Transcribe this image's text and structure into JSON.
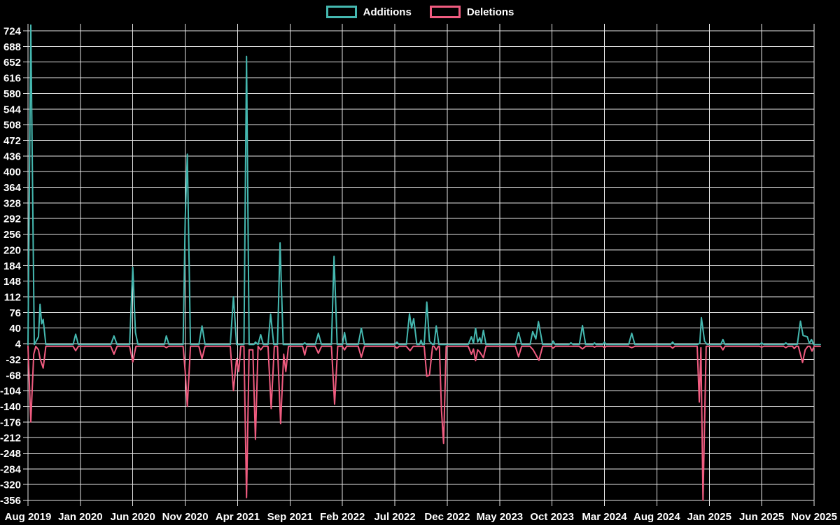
{
  "legend": {
    "additions_label": "Additions",
    "deletions_label": "Deletions"
  },
  "colors": {
    "background": "#000000",
    "grid": "#e6e6e6",
    "text": "#ffffff",
    "additions": "#45b8b0",
    "deletions": "#f05c80"
  },
  "chart_data": {
    "type": "line",
    "title": "",
    "xlabel": "",
    "ylabel": "",
    "grid": true,
    "legend_position": "top-center",
    "x_unit": "months since Aug 2019 (5 months between ticks)",
    "x_tick_labels": [
      "Aug 2019",
      "Jan 2020",
      "Jun 2020",
      "Nov 2020",
      "Apr 2021",
      "Sep 2021",
      "Feb 2022",
      "Jul 2022",
      "Dec 2022",
      "May 2023",
      "Oct 2023",
      "Mar 2024",
      "Aug 2024",
      "Jan 2025",
      "Jun 2025",
      "Nov 2025"
    ],
    "x_months_per_tick": 5,
    "x_months_total": 75.6,
    "y_ticks": [
      724,
      688,
      652,
      616,
      580,
      544,
      508,
      472,
      436,
      400,
      364,
      328,
      292,
      256,
      220,
      184,
      148,
      112,
      76,
      40,
      4,
      -32,
      -68,
      -104,
      -140,
      -176,
      -212,
      -248,
      -284,
      -320,
      -356
    ],
    "y_max": 724,
    "y_min": -356,
    "y_step": 36,
    "series": [
      {
        "name": "Additions",
        "color_key": "additions",
        "points": [
          [
            0,
            2
          ],
          [
            0.27,
            737
          ],
          [
            0.6,
            2
          ],
          [
            1.0,
            20
          ],
          [
            1.15,
            95
          ],
          [
            1.3,
            50
          ],
          [
            1.45,
            60
          ],
          [
            1.7,
            2
          ],
          [
            4.3,
            2
          ],
          [
            4.55,
            26
          ],
          [
            4.8,
            2
          ],
          [
            7.9,
            2
          ],
          [
            8.2,
            22
          ],
          [
            8.5,
            2
          ],
          [
            9.7,
            2
          ],
          [
            10.0,
            180
          ],
          [
            10.25,
            30
          ],
          [
            10.5,
            2
          ],
          [
            13.0,
            2
          ],
          [
            13.2,
            22
          ],
          [
            13.45,
            2
          ],
          [
            14.8,
            2
          ],
          [
            15.0,
            290
          ],
          [
            15.2,
            440
          ],
          [
            15.5,
            2
          ],
          [
            16.3,
            2
          ],
          [
            16.6,
            45
          ],
          [
            16.9,
            2
          ],
          [
            19.3,
            2
          ],
          [
            19.6,
            112
          ],
          [
            19.9,
            2
          ],
          [
            20.6,
            2
          ],
          [
            20.85,
            665
          ],
          [
            21.1,
            2
          ],
          [
            21.55,
            2
          ],
          [
            21.7,
            8
          ],
          [
            21.95,
            2
          ],
          [
            22.2,
            25
          ],
          [
            22.45,
            2
          ],
          [
            22.9,
            2
          ],
          [
            23.15,
            72
          ],
          [
            23.45,
            2
          ],
          [
            23.8,
            2
          ],
          [
            24.05,
            236
          ],
          [
            24.35,
            2
          ],
          [
            26.2,
            2
          ],
          [
            26.4,
            6
          ],
          [
            26.6,
            2
          ],
          [
            27.4,
            2
          ],
          [
            27.7,
            28
          ],
          [
            28.0,
            2
          ],
          [
            28.95,
            2
          ],
          [
            29.2,
            205
          ],
          [
            29.5,
            2
          ],
          [
            30.0,
            2
          ],
          [
            30.2,
            30
          ],
          [
            30.4,
            2
          ],
          [
            31.5,
            2
          ],
          [
            31.8,
            40
          ],
          [
            32.1,
            2
          ],
          [
            35.0,
            2
          ],
          [
            35.2,
            8
          ],
          [
            35.4,
            2
          ],
          [
            36.1,
            2
          ],
          [
            36.4,
            73
          ],
          [
            36.6,
            40
          ],
          [
            36.8,
            62
          ],
          [
            37.1,
            2
          ],
          [
            37.35,
            2
          ],
          [
            37.5,
            12
          ],
          [
            37.65,
            2
          ],
          [
            37.8,
            2
          ],
          [
            38.05,
            100
          ],
          [
            38.3,
            10
          ],
          [
            38.6,
            2
          ],
          [
            38.75,
            2
          ],
          [
            38.95,
            45
          ],
          [
            39.2,
            2
          ],
          [
            42.0,
            2
          ],
          [
            42.3,
            20
          ],
          [
            42.5,
            5
          ],
          [
            42.7,
            40
          ],
          [
            42.9,
            8
          ],
          [
            43.1,
            18
          ],
          [
            43.25,
            5
          ],
          [
            43.45,
            35
          ],
          [
            43.7,
            2
          ],
          [
            46.5,
            2
          ],
          [
            46.8,
            30
          ],
          [
            47.1,
            2
          ],
          [
            47.9,
            2
          ],
          [
            48.15,
            32
          ],
          [
            48.45,
            15
          ],
          [
            48.7,
            55
          ],
          [
            49.1,
            2
          ],
          [
            49.9,
            2
          ],
          [
            50.1,
            10
          ],
          [
            50.3,
            2
          ],
          [
            51.6,
            2
          ],
          [
            51.8,
            6
          ],
          [
            52.0,
            2
          ],
          [
            52.6,
            2
          ],
          [
            52.9,
            46
          ],
          [
            53.2,
            2
          ],
          [
            53.9,
            2
          ],
          [
            54.05,
            6
          ],
          [
            54.2,
            2
          ],
          [
            54.85,
            2
          ],
          [
            55.0,
            8
          ],
          [
            55.15,
            2
          ],
          [
            57.3,
            2
          ],
          [
            57.6,
            28
          ],
          [
            57.9,
            2
          ],
          [
            61.3,
            2
          ],
          [
            61.5,
            8
          ],
          [
            61.7,
            2
          ],
          [
            63.9,
            2
          ],
          [
            64.1,
            6
          ],
          [
            64.25,
            64
          ],
          [
            64.55,
            10
          ],
          [
            64.8,
            2
          ],
          [
            66.1,
            2
          ],
          [
            66.3,
            14
          ],
          [
            66.5,
            2
          ],
          [
            69.8,
            2
          ],
          [
            70.0,
            6
          ],
          [
            70.2,
            2
          ],
          [
            72.1,
            2
          ],
          [
            72.3,
            6
          ],
          [
            72.5,
            2
          ],
          [
            73.4,
            2
          ],
          [
            73.7,
            56
          ],
          [
            73.95,
            23
          ],
          [
            74.35,
            20
          ],
          [
            74.55,
            5
          ],
          [
            74.75,
            14
          ],
          [
            74.95,
            2
          ],
          [
            75.6,
            2
          ]
        ]
      },
      {
        "name": "Deletions",
        "color_key": "deletions",
        "points": [
          [
            0,
            -2
          ],
          [
            0.27,
            -176
          ],
          [
            0.55,
            -20
          ],
          [
            0.75,
            -2
          ],
          [
            1.0,
            -10
          ],
          [
            1.15,
            -30
          ],
          [
            1.45,
            -52
          ],
          [
            1.7,
            -2
          ],
          [
            4.3,
            -2
          ],
          [
            4.55,
            -12
          ],
          [
            4.8,
            -2
          ],
          [
            7.9,
            -2
          ],
          [
            8.2,
            -20
          ],
          [
            8.5,
            -2
          ],
          [
            9.7,
            -2
          ],
          [
            10.0,
            -38
          ],
          [
            10.3,
            -2
          ],
          [
            13.0,
            -2
          ],
          [
            13.2,
            -5
          ],
          [
            13.4,
            -2
          ],
          [
            14.8,
            -2
          ],
          [
            15.0,
            -60
          ],
          [
            15.2,
            -140
          ],
          [
            15.5,
            -2
          ],
          [
            16.3,
            -2
          ],
          [
            16.6,
            -30
          ],
          [
            16.9,
            -2
          ],
          [
            19.3,
            -2
          ],
          [
            19.6,
            -104
          ],
          [
            19.9,
            -30
          ],
          [
            20.1,
            -60
          ],
          [
            20.3,
            -2
          ],
          [
            20.6,
            -2
          ],
          [
            20.85,
            -350
          ],
          [
            21.1,
            -10
          ],
          [
            21.45,
            -10
          ],
          [
            21.7,
            -216
          ],
          [
            21.95,
            -2
          ],
          [
            22.2,
            -10
          ],
          [
            22.45,
            -2
          ],
          [
            22.9,
            -2
          ],
          [
            23.2,
            -145
          ],
          [
            23.5,
            -2
          ],
          [
            23.8,
            -2
          ],
          [
            24.1,
            -180
          ],
          [
            24.4,
            -20
          ],
          [
            24.6,
            -60
          ],
          [
            24.85,
            -2
          ],
          [
            26.2,
            -2
          ],
          [
            26.4,
            -22
          ],
          [
            26.6,
            -2
          ],
          [
            27.4,
            -2
          ],
          [
            27.7,
            -18
          ],
          [
            28.0,
            -2
          ],
          [
            28.95,
            -2
          ],
          [
            29.25,
            -135
          ],
          [
            29.55,
            -2
          ],
          [
            30.0,
            -2
          ],
          [
            30.2,
            -10
          ],
          [
            30.4,
            -2
          ],
          [
            31.5,
            -2
          ],
          [
            31.8,
            -27
          ],
          [
            32.1,
            -2
          ],
          [
            35.0,
            -2
          ],
          [
            35.2,
            -6
          ],
          [
            35.4,
            -2
          ],
          [
            36.1,
            -2
          ],
          [
            36.45,
            -12
          ],
          [
            36.75,
            -2
          ],
          [
            37.8,
            -2
          ],
          [
            38.05,
            -71
          ],
          [
            38.3,
            -68
          ],
          [
            38.6,
            -2
          ],
          [
            38.75,
            -2
          ],
          [
            38.95,
            -10
          ],
          [
            39.15,
            -2
          ],
          [
            39.25,
            -2
          ],
          [
            39.45,
            -150
          ],
          [
            39.65,
            -225
          ],
          [
            39.9,
            -2
          ],
          [
            42.0,
            -2
          ],
          [
            42.3,
            -20
          ],
          [
            42.5,
            -8
          ],
          [
            42.7,
            -35
          ],
          [
            42.9,
            -10
          ],
          [
            43.1,
            -15
          ],
          [
            43.45,
            -28
          ],
          [
            43.7,
            -2
          ],
          [
            46.5,
            -2
          ],
          [
            46.8,
            -26
          ],
          [
            47.1,
            -2
          ],
          [
            47.9,
            -2
          ],
          [
            48.2,
            -10
          ],
          [
            48.75,
            -34
          ],
          [
            49.1,
            -2
          ],
          [
            49.9,
            -2
          ],
          [
            50.1,
            -6
          ],
          [
            50.3,
            -2
          ],
          [
            52.6,
            -2
          ],
          [
            52.9,
            -8
          ],
          [
            53.2,
            -2
          ],
          [
            53.9,
            -2
          ],
          [
            54.05,
            -4
          ],
          [
            54.2,
            -2
          ],
          [
            54.85,
            -2
          ],
          [
            55.0,
            -5
          ],
          [
            55.15,
            -2
          ],
          [
            57.3,
            -2
          ],
          [
            57.6,
            -5
          ],
          [
            57.9,
            -2
          ],
          [
            61.3,
            -2
          ],
          [
            61.5,
            -6
          ],
          [
            61.7,
            -2
          ],
          [
            63.85,
            -2
          ],
          [
            64.05,
            -130
          ],
          [
            64.2,
            -5
          ],
          [
            64.4,
            -356
          ],
          [
            64.7,
            -2
          ],
          [
            66.1,
            -2
          ],
          [
            66.3,
            -10
          ],
          [
            66.5,
            -2
          ],
          [
            69.8,
            -2
          ],
          [
            70.0,
            -4
          ],
          [
            70.2,
            -2
          ],
          [
            72.1,
            -2
          ],
          [
            72.3,
            -5
          ],
          [
            72.5,
            -2
          ],
          [
            72.95,
            -2
          ],
          [
            73.1,
            -7
          ],
          [
            73.3,
            -2
          ],
          [
            73.5,
            -2
          ],
          [
            73.9,
            -39
          ],
          [
            74.15,
            -10
          ],
          [
            74.4,
            -2
          ],
          [
            74.6,
            -2
          ],
          [
            74.8,
            -13
          ],
          [
            75.0,
            -2
          ],
          [
            75.6,
            -2
          ]
        ]
      }
    ]
  }
}
